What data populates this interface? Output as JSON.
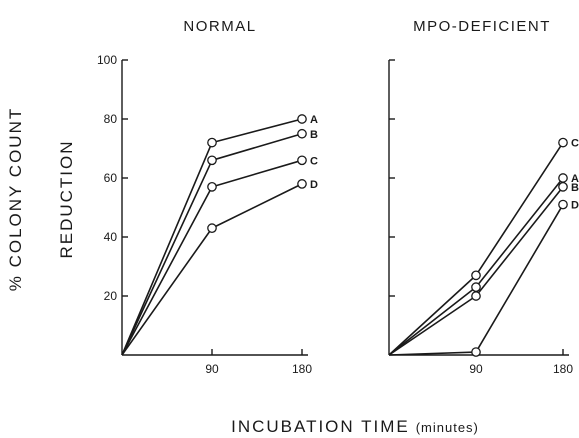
{
  "chart_data": [
    {
      "type": "line",
      "title": "NORMAL",
      "xlabel": "INCUBATION TIME",
      "xlabel_unit": "(minutes)",
      "ylabel_line1": "% COLONY COUNT",
      "ylabel_line2": "REDUCTION",
      "x": [
        0,
        90,
        180
      ],
      "x_ticks": [
        "90",
        "180"
      ],
      "y_ticks": [
        "100",
        "80",
        "60",
        "40",
        "20"
      ],
      "xlim": [
        0,
        180
      ],
      "ylim": [
        0,
        100
      ],
      "series": [
        {
          "name": "A",
          "values": [
            0,
            72,
            80
          ]
        },
        {
          "name": "B",
          "values": [
            0,
            66,
            75
          ]
        },
        {
          "name": "C",
          "values": [
            0,
            57,
            66
          ]
        },
        {
          "name": "D",
          "values": [
            0,
            43,
            58
          ]
        }
      ]
    },
    {
      "type": "line",
      "title": "MPO-DEFICIENT",
      "x": [
        0,
        90,
        180
      ],
      "x_ticks": [
        "90",
        "180"
      ],
      "xlim": [
        0,
        180
      ],
      "ylim": [
        0,
        100
      ],
      "series": [
        {
          "name": "C",
          "values": [
            0,
            27,
            72
          ]
        },
        {
          "name": "A",
          "values": [
            0,
            23,
            60
          ]
        },
        {
          "name": "B",
          "values": [
            0,
            20,
            57
          ]
        },
        {
          "name": "D",
          "values": [
            0,
            1,
            51
          ]
        }
      ]
    }
  ]
}
